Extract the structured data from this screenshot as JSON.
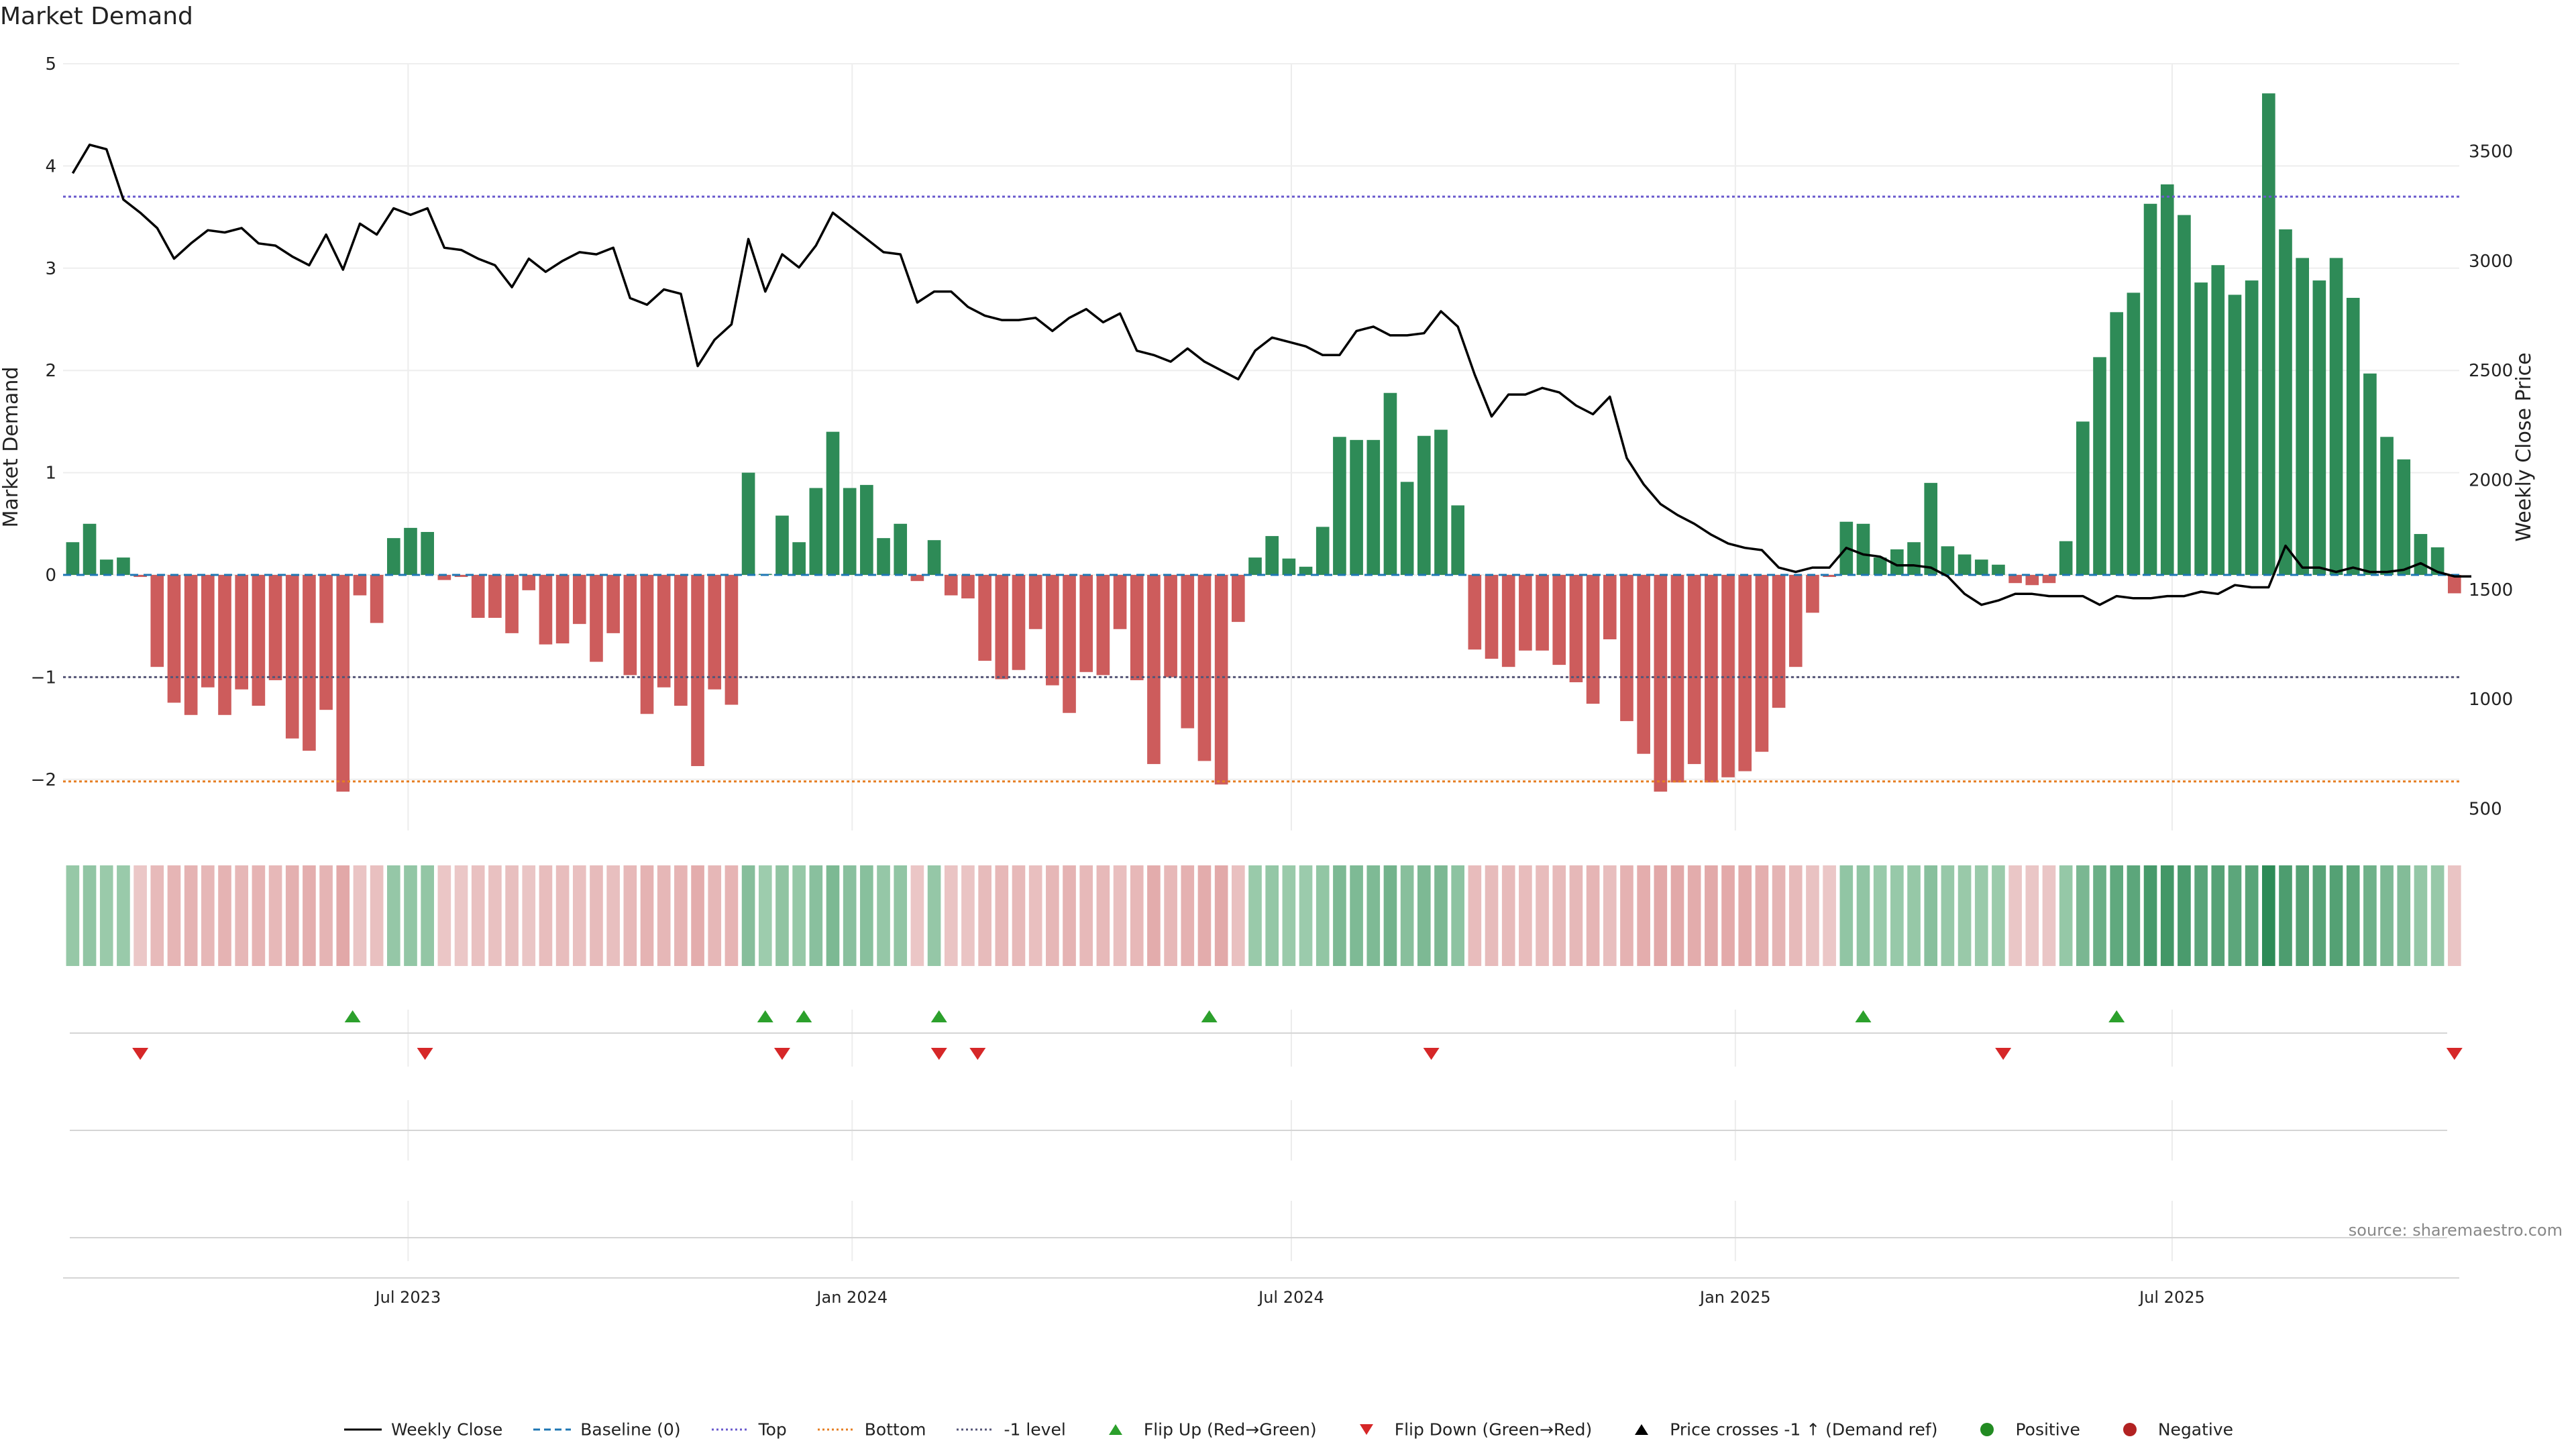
{
  "title": "Market Demand",
  "source": "source: sharemaestro.com",
  "colors": {
    "positive_bar": "#2e8b57",
    "negative_bar": "#cd5c5c",
    "price_line": "#000000",
    "top_line": "#6a5acd",
    "bottom_line": "#e67e22",
    "minus1_line": "#555577",
    "baseline": "#1f77b4",
    "flip_up": "#2ca02c",
    "flip_down": "#d62728",
    "positive_dot": "#228b22",
    "negative_dot": "#b22222"
  },
  "legend": [
    {
      "label": "Weekly Close",
      "kind": "line",
      "color": "#000000",
      "dash": ""
    },
    {
      "label": "Baseline (0)",
      "kind": "line",
      "color": "#1f77b4",
      "dash": "10,6"
    },
    {
      "label": "Top",
      "kind": "line",
      "color": "#6a5acd",
      "dash": "3,4"
    },
    {
      "label": "Bottom",
      "kind": "line",
      "color": "#e67e22",
      "dash": "3,4"
    },
    {
      "label": "-1 level",
      "kind": "line",
      "color": "#555577",
      "dash": "3,4"
    },
    {
      "label": "Flip Up (Red→Green)",
      "kind": "tri-up",
      "color": "#2ca02c"
    },
    {
      "label": "Flip Down (Green→Red)",
      "kind": "tri-down",
      "color": "#d62728"
    },
    {
      "label": "Price crosses -1 ↑ (Demand ref)",
      "kind": "tri-up",
      "color": "#000000"
    },
    {
      "label": "Positive",
      "kind": "dot",
      "color": "#228b22"
    },
    {
      "label": "Negative",
      "kind": "dot",
      "color": "#b22222"
    }
  ],
  "chart_data": {
    "type": "bar",
    "title": "Market Demand",
    "ylabel": "Market Demand",
    "y2label": "Weekly Close Price",
    "ylim": [
      -2.5,
      5
    ],
    "yticks": [
      -2,
      -1,
      0,
      1,
      2,
      3,
      4,
      5
    ],
    "y2lim": [
      400,
      3900
    ],
    "y2ticks": [
      500,
      1000,
      1500,
      2000,
      2500,
      3000,
      3500
    ],
    "x_range": [
      "2023-02-08",
      "2025-10-28"
    ],
    "xticks": [
      {
        "date": "2023-07-01",
        "label": "Jul 2023"
      },
      {
        "date": "2024-01-01",
        "label": "Jan 2024"
      },
      {
        "date": "2024-07-01",
        "label": "Jul 2024"
      },
      {
        "date": "2025-01-01",
        "label": "Jan 2025"
      },
      {
        "date": "2025-07-01",
        "label": "Jul 2025"
      }
    ],
    "first_week": "2023-02-12",
    "levels": {
      "top": 3.7,
      "bottom": -2.02,
      "minus_one": -1,
      "baseline": 0
    },
    "series": [
      {
        "name": "Market Demand",
        "values": [
          0.32,
          0.5,
          0.15,
          0.17,
          -0.02,
          -0.9,
          -1.25,
          -1.37,
          -1.1,
          -1.37,
          -1.12,
          -1.28,
          -1.03,
          -1.6,
          -1.72,
          -1.32,
          -2.12,
          -0.2,
          -0.47,
          0.36,
          0.46,
          0.42,
          -0.05,
          -0.02,
          -0.42,
          -0.42,
          -0.57,
          -0.15,
          -0.68,
          -0.67,
          -0.48,
          -0.85,
          -0.57,
          -0.98,
          -1.36,
          -1.1,
          -1.28,
          -1.87,
          -1.12,
          -1.27,
          1.0,
          0.01,
          0.58,
          0.32,
          0.85,
          1.4,
          0.85,
          0.88,
          0.36,
          0.5,
          -0.06,
          0.34,
          -0.2,
          -0.23,
          -0.84,
          -1.02,
          -0.93,
          -0.53,
          -1.08,
          -1.35,
          -0.95,
          -0.98,
          -0.53,
          -1.03,
          -1.85,
          -1.0,
          -1.5,
          -1.82,
          -2.05,
          -0.46,
          0.17,
          0.38,
          0.16,
          0.08,
          0.47,
          1.35,
          1.32,
          1.32,
          1.78,
          0.91,
          1.36,
          1.42,
          0.68,
          -0.73,
          -0.82,
          -0.9,
          -0.74,
          -0.74,
          -0.88,
          -1.05,
          -1.26,
          -0.63,
          -1.43,
          -1.75,
          -2.12,
          -2.03,
          -1.85,
          -2.03,
          -1.98,
          -1.92,
          -1.73,
          -1.3,
          -0.9,
          -0.37,
          -0.02,
          0.52,
          0.5,
          0.17,
          0.25,
          0.32,
          0.9,
          0.28,
          0.2,
          0.15,
          0.1,
          -0.08,
          -0.1,
          -0.08,
          0.33,
          1.5,
          2.13,
          2.57,
          2.76,
          3.63,
          3.82,
          3.52,
          2.86,
          3.03,
          2.74,
          2.88,
          4.71,
          3.38,
          3.1,
          2.88,
          3.1,
          2.71,
          1.97,
          1.35,
          1.13,
          0.4,
          0.27,
          -0.18
        ]
      },
      {
        "name": "Weekly Close",
        "values": [
          3400,
          3530,
          3510,
          3280,
          3220,
          3150,
          3010,
          3080,
          3140,
          3130,
          3150,
          3080,
          3070,
          3020,
          2980,
          3120,
          2960,
          3170,
          3120,
          3240,
          3210,
          3240,
          3060,
          3050,
          3010,
          2980,
          2880,
          3010,
          2950,
          3000,
          3040,
          3030,
          3060,
          2830,
          2800,
          2870,
          2850,
          2520,
          2640,
          2710,
          3100,
          2860,
          3030,
          2970,
          3070,
          3220,
          3160,
          3100,
          3040,
          3030,
          2810,
          2860,
          2860,
          2790,
          2750,
          2730,
          2730,
          2740,
          2680,
          2740,
          2780,
          2720,
          2760,
          2590,
          2570,
          2540,
          2600,
          2540,
          2500,
          2460,
          2590,
          2650,
          2630,
          2610,
          2570,
          2570,
          2680,
          2700,
          2660,
          2660,
          2670,
          2770,
          2700,
          2480,
          2290,
          2390,
          2390,
          2420,
          2400,
          2340,
          2300,
          2380,
          2100,
          1980,
          1890,
          1840,
          1800,
          1750,
          1710,
          1690,
          1680,
          1600,
          1580,
          1600,
          1600,
          1690,
          1660,
          1650,
          1610,
          1610,
          1600,
          1560,
          1480,
          1430,
          1450,
          1480,
          1480,
          1470,
          1470,
          1470,
          1430,
          1470,
          1460,
          1460,
          1470,
          1470,
          1490,
          1480,
          1520,
          1510,
          1510,
          1700,
          1600,
          1600,
          1580,
          1600,
          1580,
          1580,
          1590,
          1620,
          1580,
          1560,
          1560
        ]
      }
    ],
    "flip_up_dates": [
      "2023-06-08",
      "2023-11-26",
      "2023-12-12",
      "2024-02-06",
      "2024-05-28",
      "2025-02-23",
      "2025-06-08"
    ],
    "flip_down_dates": [
      "2023-03-12",
      "2023-07-08",
      "2023-12-03",
      "2024-02-06",
      "2024-02-22",
      "2024-08-28",
      "2025-04-22",
      "2025-10-26"
    ]
  }
}
